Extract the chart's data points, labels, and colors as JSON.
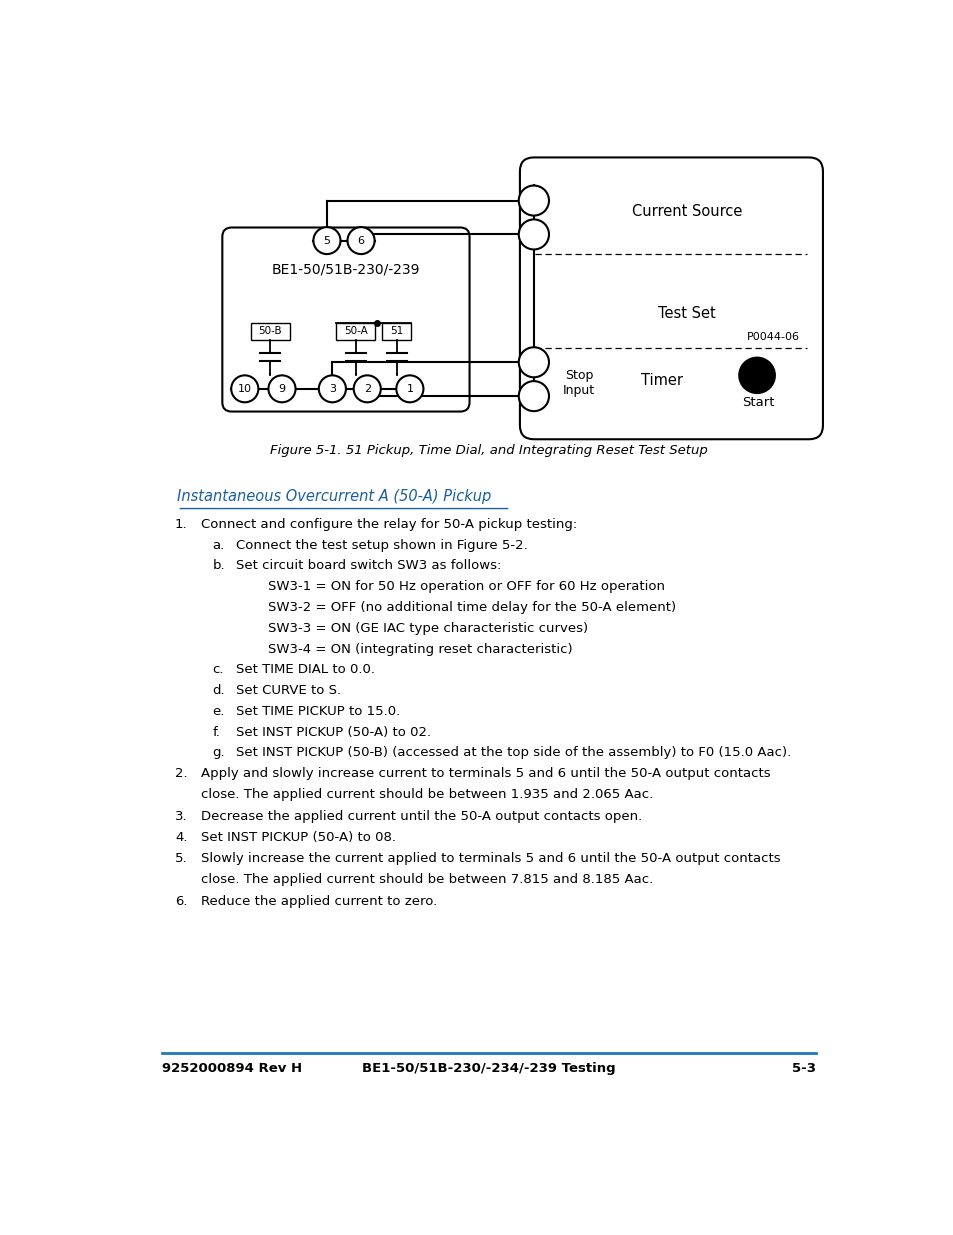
{
  "fig_width": 9.54,
  "fig_height": 12.35,
  "bg_color": "#ffffff",
  "figure_caption": "Figure 5-1. 51 Pickup, Time Dial, and Integrating Reset Test Setup",
  "section_heading": "Instantaneous Overcurrent A (50-A) Pickup",
  "footer_left": "9252000894 Rev H",
  "footer_center": "BE1-50/51B-230/-234/-239 Testing",
  "footer_right": "5-3",
  "footer_line_color": "#1e7abf",
  "current_source_label": "Current Source",
  "test_set_label": "Test Set",
  "p_label": "P0044-06",
  "stop_input_label": "Stop\nInput",
  "timer_label": "Timer",
  "start_label": "Start",
  "relay_label": "BE1-50/51B-230/-239",
  "body_text": [
    {
      "indent": 0,
      "bullet": "1.",
      "text": "Connect and configure the relay for 50-A pickup testing:"
    },
    {
      "indent": 1,
      "bullet": "a.",
      "text": "Connect the test setup shown in Figure 5-2."
    },
    {
      "indent": 1,
      "bullet": "b.",
      "text": "Set circuit board switch SW3 as follows:"
    },
    {
      "indent": 2,
      "bullet": "",
      "text": "SW3-1 = ON for 50 Hz operation or OFF for 60 Hz operation"
    },
    {
      "indent": 2,
      "bullet": "",
      "text": "SW3-2 = OFF (no additional time delay for the 50-A element)"
    },
    {
      "indent": 2,
      "bullet": "",
      "text": "SW3-3 = ON (GE IAC type characteristic curves)"
    },
    {
      "indent": 2,
      "bullet": "",
      "text": "SW3-4 = ON (integrating reset characteristic)"
    },
    {
      "indent": 1,
      "bullet": "c.",
      "text": "Set TIME DIAL to 0.0."
    },
    {
      "indent": 1,
      "bullet": "d.",
      "text": "Set CURVE to S."
    },
    {
      "indent": 1,
      "bullet": "e.",
      "text": "Set TIME PICKUP to 15.0."
    },
    {
      "indent": 1,
      "bullet": "f.",
      "text": "Set INST PICKUP (50-A) to 02."
    },
    {
      "indent": 1,
      "bullet": "g.",
      "text": "Set INST PICKUP (50-B) (accessed at the top side of the assembly) to F0 (15.0 Aac)."
    },
    {
      "indent": 0,
      "bullet": "2.",
      "text": "Apply and slowly increase current to terminals 5 and 6 until the 50-A output contacts close. The applied current should be between 1.935 and 2.065 Aac."
    },
    {
      "indent": 0,
      "bullet": "3.",
      "text": "Decrease the applied current until the 50-A output contacts open."
    },
    {
      "indent": 0,
      "bullet": "4.",
      "text": "Set INST PICKUP (50-A) to 08."
    },
    {
      "indent": 0,
      "bullet": "5.",
      "text": "Slowly increase the current applied to terminals 5 and 6 until the 50-A output contacts close. The applied current should be between 7.815 and 8.185 Aac."
    },
    {
      "indent": 0,
      "bullet": "6.",
      "text": "Reduce the applied current to zero."
    }
  ]
}
